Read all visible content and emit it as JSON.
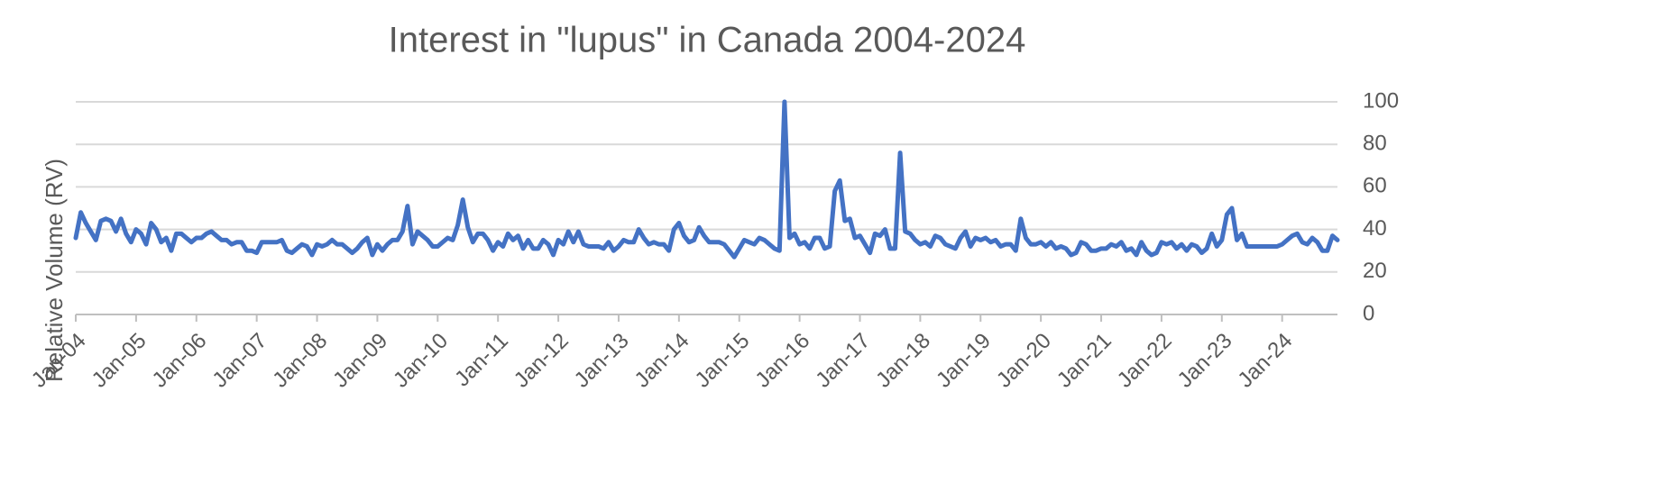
{
  "chart_data": {
    "type": "line",
    "title": "Interest in \"lupus\" in Canada 2004-2024",
    "y_label": "Relative Volume (RV)",
    "categories": [
      "Jan-04",
      null,
      null,
      null,
      null,
      null,
      null,
      null,
      null,
      null,
      null,
      null,
      "Jan-05",
      null,
      null,
      null,
      null,
      null,
      null,
      null,
      null,
      null,
      null,
      null,
      "Jan-06",
      null,
      null,
      null,
      null,
      null,
      null,
      null,
      null,
      null,
      null,
      null,
      "Jan-07",
      null,
      null,
      null,
      null,
      null,
      null,
      null,
      null,
      null,
      null,
      null,
      "Jan-08",
      null,
      null,
      null,
      null,
      null,
      null,
      null,
      null,
      null,
      null,
      null,
      "Jan-09",
      null,
      null,
      null,
      null,
      null,
      null,
      null,
      null,
      null,
      null,
      null,
      "Jan-10",
      null,
      null,
      null,
      null,
      null,
      null,
      null,
      null,
      null,
      null,
      null,
      "Jan-11",
      null,
      null,
      null,
      null,
      null,
      null,
      null,
      null,
      null,
      null,
      null,
      "Jan-12",
      null,
      null,
      null,
      null,
      null,
      null,
      null,
      null,
      null,
      null,
      null,
      "Jan-13",
      null,
      null,
      null,
      null,
      null,
      null,
      null,
      null,
      null,
      null,
      null,
      "Jan-14",
      null,
      null,
      null,
      null,
      null,
      null,
      null,
      null,
      null,
      null,
      null,
      "Jan-15",
      null,
      null,
      null,
      null,
      null,
      null,
      null,
      null,
      null,
      null,
      null,
      "Jan-16",
      null,
      null,
      null,
      null,
      null,
      null,
      null,
      null,
      null,
      null,
      null,
      "Jan-17",
      null,
      null,
      null,
      null,
      null,
      null,
      null,
      null,
      null,
      null,
      null,
      "Jan-18",
      null,
      null,
      null,
      null,
      null,
      null,
      null,
      null,
      null,
      null,
      null,
      "Jan-19",
      null,
      null,
      null,
      null,
      null,
      null,
      null,
      null,
      null,
      null,
      null,
      "Jan-20",
      null,
      null,
      null,
      null,
      null,
      null,
      null,
      null,
      null,
      null,
      null,
      "Jan-21",
      null,
      null,
      null,
      null,
      null,
      null,
      null,
      null,
      null,
      null,
      null,
      "Jan-22",
      null,
      null,
      null,
      null,
      null,
      null,
      null,
      null,
      null,
      null,
      null,
      "Jan-23",
      null,
      null,
      null,
      null,
      null,
      null,
      null,
      null,
      null,
      null,
      null,
      "Jan-24",
      null,
      null,
      null,
      null,
      null,
      null,
      null,
      null,
      null,
      null,
      null
    ],
    "values": [
      36,
      48,
      43,
      39,
      35,
      44,
      45,
      44,
      39,
      45,
      38,
      34,
      40,
      38,
      33,
      43,
      40,
      34,
      36,
      30,
      38,
      38,
      36,
      34,
      36,
      36,
      38,
      39,
      37,
      35,
      35,
      33,
      34,
      34,
      30,
      30,
      29,
      34,
      34,
      34,
      34,
      35,
      30,
      29,
      31,
      33,
      32,
      28,
      33,
      32,
      33,
      35,
      33,
      33,
      31,
      29,
      31,
      34,
      36,
      28,
      33,
      30,
      33,
      35,
      35,
      39,
      51,
      33,
      39,
      37,
      35,
      32,
      32,
      34,
      36,
      35,
      42,
      54,
      41,
      34,
      38,
      38,
      35,
      30,
      34,
      32,
      38,
      35,
      37,
      31,
      35,
      31,
      31,
      35,
      33,
      28,
      35,
      33,
      39,
      34,
      39,
      33,
      32,
      32,
      32,
      31,
      34,
      30,
      32,
      35,
      34,
      34,
      40,
      36,
      33,
      34,
      33,
      33,
      30,
      40,
      43,
      37,
      34,
      35,
      41,
      37,
      34,
      34,
      34,
      33,
      30,
      27,
      31,
      35,
      34,
      33,
      36,
      35,
      33,
      31,
      30,
      100,
      36,
      38,
      33,
      34,
      31,
      36,
      36,
      31,
      32,
      58,
      63,
      44,
      45,
      36,
      37,
      33,
      29,
      38,
      37,
      40,
      31,
      31,
      76,
      39,
      38,
      35,
      33,
      34,
      32,
      37,
      36,
      33,
      32,
      31,
      36,
      39,
      32,
      36,
      35,
      36,
      34,
      35,
      32,
      33,
      33,
      30,
      45,
      36,
      33,
      33,
      34,
      32,
      34,
      31,
      32,
      31,
      28,
      29,
      34,
      33,
      30,
      30,
      31,
      31,
      33,
      32,
      34,
      30,
      31,
      28,
      34,
      30,
      28,
      29,
      34,
      33,
      34,
      31,
      33,
      30,
      33,
      32,
      29,
      31,
      38,
      32,
      35,
      47,
      50,
      35,
      38,
      32,
      32,
      32,
      32,
      32,
      32,
      32,
      33,
      35,
      37,
      38,
      34,
      33,
      36,
      34,
      30,
      30,
      37,
      35
    ],
    "color": "#4472c4",
    "ylim": [
      0,
      100
    ],
    "yticks": [
      0,
      20,
      40,
      60,
      80,
      100
    ],
    "grid": true,
    "y_axis_side": "right"
  }
}
